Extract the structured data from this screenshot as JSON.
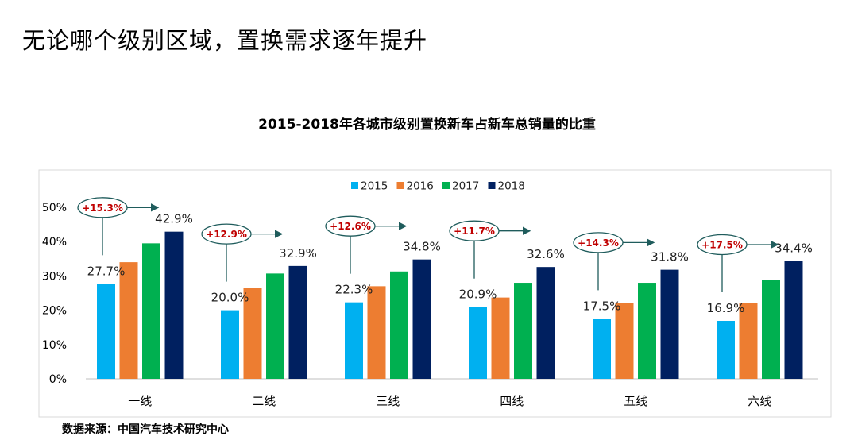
{
  "slide_title": "无论哪个级别区域，置换需求逐年提升",
  "source_note": "数据来源：中国汽车技术研究中心",
  "colors": {
    "2015": "#00B0F0",
    "2016": "#ED7D31",
    "2017": "#00B050",
    "2018": "#002060",
    "growth_label": "#C00000",
    "growth_outline": "#1F5C5C"
  },
  "chart_data": {
    "type": "bar",
    "title": "2015-2018年各城市级别置换新车占新车总销量的比重",
    "categories": [
      "一线",
      "二线",
      "三线",
      "四线",
      "五线",
      "六线"
    ],
    "series": [
      {
        "name": "2015",
        "values": [
          27.7,
          20.0,
          22.3,
          20.9,
          17.5,
          16.9
        ]
      },
      {
        "name": "2016",
        "values": [
          34.0,
          26.5,
          27.0,
          23.7,
          22.0,
          22.0
        ]
      },
      {
        "name": "2017",
        "values": [
          39.5,
          30.7,
          31.3,
          28.0,
          28.0,
          28.8
        ]
      },
      {
        "name": "2018",
        "values": [
          42.9,
          32.9,
          34.8,
          32.6,
          31.8,
          34.4
        ]
      }
    ],
    "value_labels": {
      "2015": [
        "27.7%",
        "20.0%",
        "22.3%",
        "20.9%",
        "17.5%",
        "16.9%"
      ],
      "2018": [
        "42.9%",
        "32.9%",
        "34.8%",
        "32.6%",
        "31.8%",
        "34.4%"
      ]
    },
    "growth_labels": [
      "+15.3%",
      "+12.9%",
      "+12.6%",
      "+11.7%",
      "+14.3%",
      "+17.5%"
    ],
    "y_ticks": [
      "0%",
      "10%",
      "20%",
      "30%",
      "40%",
      "50%"
    ],
    "ylim": [
      0,
      50
    ],
    "grid": false,
    "legend_position": "top-center"
  }
}
